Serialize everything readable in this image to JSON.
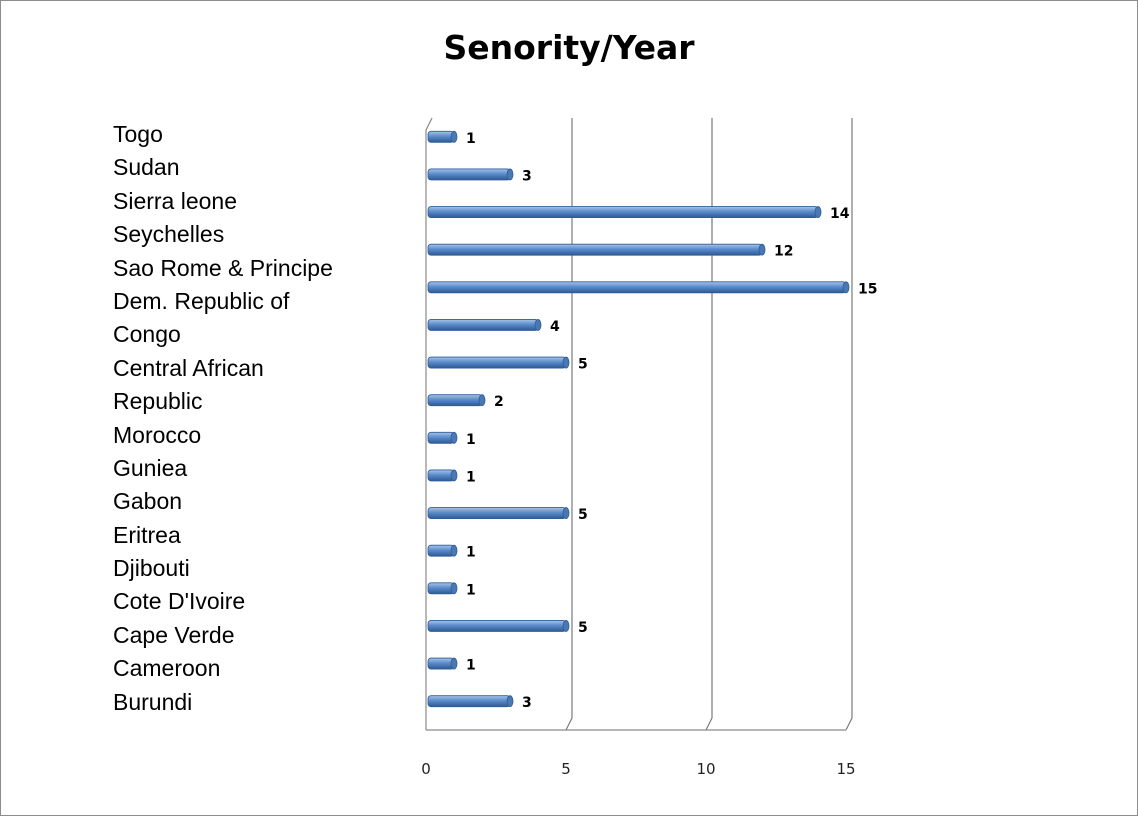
{
  "chart_data": {
    "type": "bar",
    "orientation": "horizontal",
    "title": "Senority/Year",
    "xlabel": "",
    "ylabel": "",
    "xlim": [
      0,
      15
    ],
    "x_ticks": [
      0,
      5,
      10,
      15
    ],
    "grid": true,
    "legend": "none",
    "bar_color": "#4f81bd",
    "categories": [
      "Burundi",
      "Cameroon",
      "Cape Verde",
      "Cote D'Ivoire",
      "Djibouti",
      "Eritrea",
      "Gabon",
      "Guniea",
      "Morocco",
      "Central African Republic",
      "Dem. Republic of Congo",
      "Sao Rome & Principe",
      "Seychelles",
      "Sierra leone",
      "Sudan",
      "Togo"
    ],
    "values": [
      3,
      1,
      5,
      1,
      1,
      5,
      1,
      1,
      2,
      5,
      4,
      15,
      12,
      14,
      3,
      1
    ],
    "category_label_lines": [
      "Togo",
      "Sudan",
      "Sierra leone",
      "Seychelles",
      "Sao Rome & Principe",
      "Dem. Republic of",
      "Congo",
      "Central African",
      "Republic",
      "Morocco",
      "Guniea",
      "Gabon",
      "Eritrea",
      "Djibouti",
      "Cote D'Ivoire",
      "Cape Verde",
      "Cameroon",
      "Burundi"
    ]
  }
}
